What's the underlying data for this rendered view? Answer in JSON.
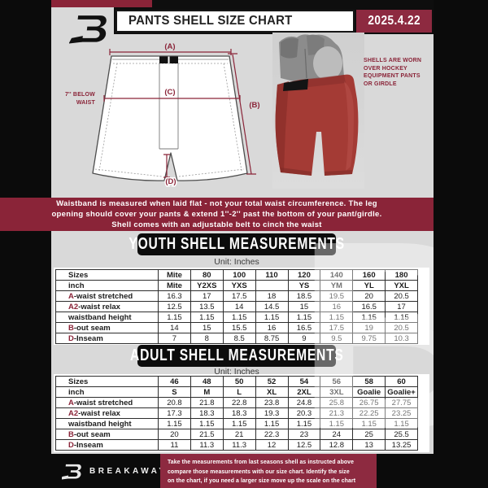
{
  "header": {
    "title": "PANTS SHELL SIZE CHART",
    "date": "2025.4.22"
  },
  "diagram": {
    "dim_a": "(A)",
    "dim_b": "(B)",
    "dim_c": "(C)",
    "dim_d": "(D)",
    "waist_note_line1": "7'' BELOW",
    "waist_note_line2": "WAIST",
    "photo_caption": [
      "SHELLS ARE WORN",
      "OVER HOCKEY",
      "EQUIPMENT PANTS",
      "OR GIRDLE"
    ]
  },
  "banner": {
    "lines": [
      "Waistband is measured when laid flat - not your total waist circumference. The leg",
      "opening should cover your pants & extend 1''-2'' past the bottom of your pant/girdle.",
      "Shell comes with an adjustable belt to cinch the waist"
    ]
  },
  "youth": {
    "title": "YOUTH SHELL MEASUREMENTS",
    "unit": "Unit: Inches",
    "rows": [
      {
        "prefix": "",
        "label": "Sizes",
        "values": [
          "Mite",
          "80",
          "100",
          "110",
          "120",
          "140",
          "160",
          "180"
        ]
      },
      {
        "prefix": "",
        "label": "inch",
        "values": [
          "Mite",
          "Y2XS",
          "YXS",
          "",
          "YS",
          "YM",
          "YL",
          "YXL"
        ]
      },
      {
        "prefix": "A",
        "label": "-waist stretched",
        "values": [
          "16.3",
          "17",
          "17.5",
          "18",
          "18.5",
          "19.5",
          "20",
          "20.5"
        ]
      },
      {
        "prefix": "A2",
        "label": "-waist relax",
        "values": [
          "12.5",
          "13.5",
          "14",
          "14.5",
          "15",
          "16",
          "16.5",
          "17"
        ]
      },
      {
        "prefix": "",
        "label": "waistband height",
        "values": [
          "1.15",
          "1.15",
          "1.15",
          "1.15",
          "1.15",
          "1.15",
          "1.15",
          "1.15"
        ]
      },
      {
        "prefix": "B",
        "label": "-out seam",
        "values": [
          "14",
          "15",
          "15.5",
          "16",
          "16.5",
          "17.5",
          "19",
          "20.5"
        ]
      },
      {
        "prefix": "D",
        "label": "-Inseam",
        "values": [
          "7",
          "8",
          "8.5",
          "8.75",
          "9",
          "9.5",
          "9.75",
          "10.3"
        ]
      }
    ]
  },
  "adult": {
    "title": "ADULT SHELL MEASUREMENTS",
    "unit": "Unit: Inches",
    "rows": [
      {
        "prefix": "",
        "label": "Sizes",
        "values": [
          "46",
          "48",
          "50",
          "52",
          "54",
          "56",
          "58",
          "60"
        ]
      },
      {
        "prefix": "",
        "label": "inch",
        "values": [
          "S",
          "M",
          "L",
          "XL",
          "2XL",
          "3XL",
          "Goalie",
          "Goalie+"
        ]
      },
      {
        "prefix": "A",
        "label": "-waist stretched",
        "values": [
          "20.8",
          "21.8",
          "22.8",
          "23.8",
          "24.8",
          "25.8",
          "26.75",
          "27.75"
        ]
      },
      {
        "prefix": "A2",
        "label": "-waist relax",
        "values": [
          "17.3",
          "18.3",
          "18.3",
          "19.3",
          "20.3",
          "21.3",
          "22.25",
          "23.25"
        ]
      },
      {
        "prefix": "",
        "label": "waistband height",
        "values": [
          "1.15",
          "1.15",
          "1.15",
          "1.15",
          "1.15",
          "1.15",
          "1.15",
          "1.15"
        ]
      },
      {
        "prefix": "B",
        "label": "-out seam",
        "values": [
          "20",
          "21.5",
          "21",
          "22.3",
          "23",
          "24",
          "25",
          "25.5"
        ]
      },
      {
        "prefix": "D",
        "label": "-Inseam",
        "values": [
          "11",
          "11.3",
          "11.3",
          "12",
          "12.5",
          "12.8",
          "13",
          "13.25"
        ]
      }
    ]
  },
  "footer": {
    "brand": "BREAKAWAY",
    "lines": [
      "Take the measurements from last seasons shell as instructed above",
      "compare those measurements  with our size chart. Identify the size",
      "on the chart, if you need a larger size move up the scale on the chart"
    ]
  },
  "watermark": "B",
  "colors": {
    "maroon": "#8a2438",
    "maroon_box": "#8d2a40",
    "black": "#0b0b0b",
    "page_bg": "#d9d9d9",
    "shell_red": "#a43b35"
  }
}
